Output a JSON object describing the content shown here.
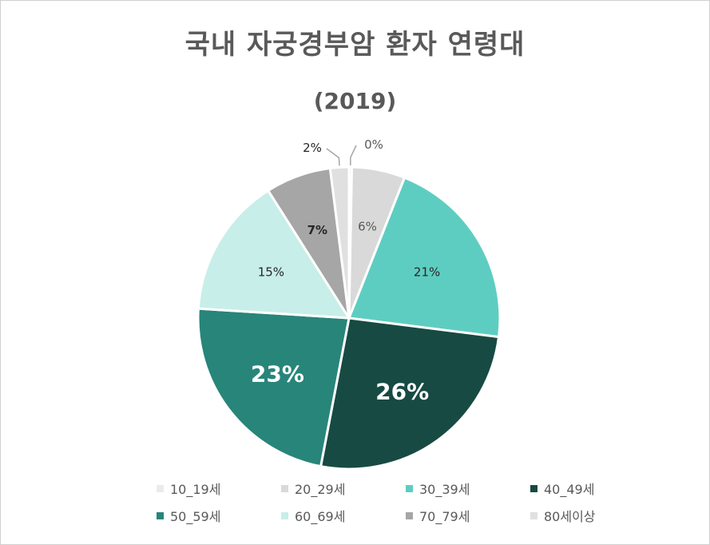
{
  "chart_data": {
    "type": "pie",
    "title": "국내 자궁경부암 환자 연령대",
    "subtitle": "(2019)",
    "legend_position": "bottom",
    "slices": [
      {
        "label": "10_19세",
        "value": 0.3,
        "display": "0%",
        "color": "#ebebeb"
      },
      {
        "label": "20_29세",
        "value": 5.7,
        "display": "6%",
        "color": "#d9d9d9"
      },
      {
        "label": "30_39세",
        "value": 21,
        "display": "21%",
        "color": "#5ecdc1"
      },
      {
        "label": "40_49세",
        "value": 26,
        "display": "26%",
        "color": "#174a43"
      },
      {
        "label": "50_59세",
        "value": 23,
        "display": "23%",
        "color": "#28857a"
      },
      {
        "label": "60_69세",
        "value": 15,
        "display": "15%",
        "color": "#c8eee9"
      },
      {
        "label": "70_79세",
        "value": 7,
        "display": "7%",
        "color": "#a6a6a6"
      },
      {
        "label": "80세이상",
        "value": 2,
        "display": "2%",
        "color": "#e0e0e0"
      }
    ]
  }
}
